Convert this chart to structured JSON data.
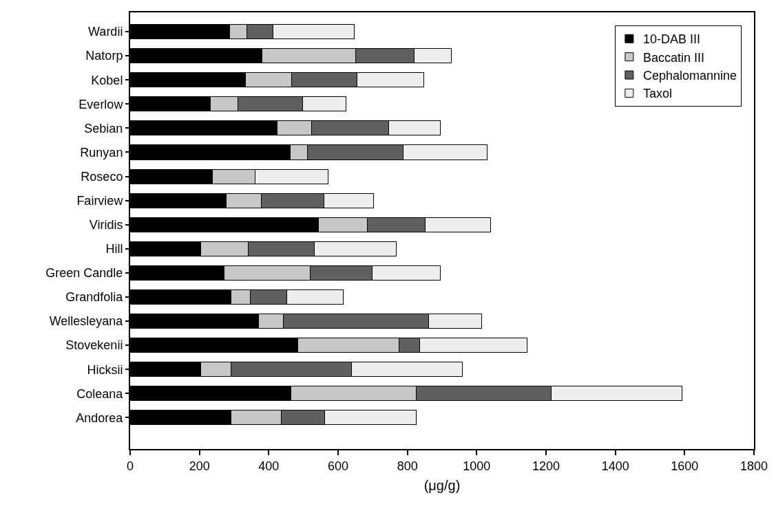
{
  "chart_data": {
    "type": "bar",
    "orientation": "horizontal",
    "stacked": true,
    "xlabel": "(μg/g)",
    "categories": [
      "Wardii",
      "Natorp",
      "Kobel",
      "Everlow",
      "Sebian",
      "Runyan",
      "Roseco",
      "Fairview",
      "Viridis",
      "Hill",
      "Green Candle",
      "Grandfolia",
      "Wellesleyana",
      "Stovekenii",
      "Hicksii",
      "Coleana",
      "Andorea"
    ],
    "series": [
      {
        "name": "10-DAB III",
        "color": "#000000",
        "values": [
          288,
          381,
          333,
          231,
          424,
          462,
          238,
          277,
          543,
          204,
          271,
          291,
          370,
          483,
          204,
          463,
          291
        ]
      },
      {
        "name": "Baccatin III",
        "color": "#c8c8c8",
        "values": [
          48,
          269,
          133,
          80,
          99,
          50,
          122,
          102,
          141,
          136,
          248,
          56,
          73,
          293,
          87,
          362,
          146
        ]
      },
      {
        "name": "Cephalomannine",
        "color": "#606060",
        "values": [
          76,
          169,
          189,
          187,
          224,
          276,
          0,
          180,
          168,
          192,
          179,
          104,
          419,
          59,
          347,
          389,
          124
        ]
      },
      {
        "name": "Taxol",
        "color": "#eeeeee",
        "values": [
          234,
          108,
          193,
          124,
          148,
          242,
          211,
          144,
          189,
          235,
          197,
          164,
          153,
          311,
          321,
          379,
          264
        ]
      }
    ],
    "xlim": [
      0,
      1800
    ],
    "xticks": [
      0,
      200,
      400,
      600,
      800,
      1000,
      1200,
      1400,
      1600,
      1800
    ],
    "grid": false,
    "legend": "top right"
  }
}
